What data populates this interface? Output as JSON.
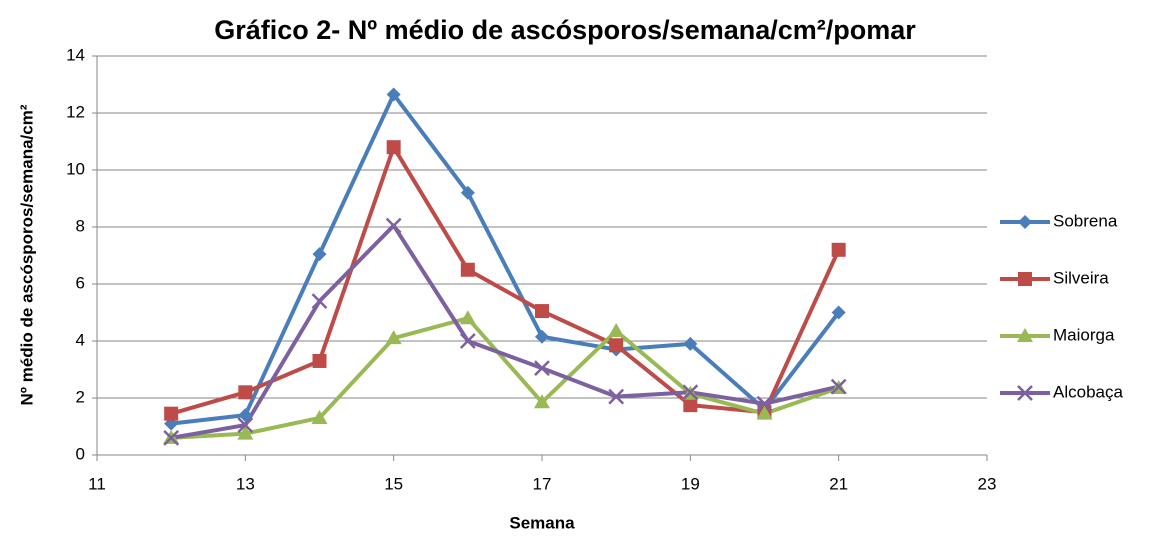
{
  "chart_data": {
    "type": "line",
    "title": "Gráfico 2- Nº médio de ascósporos/semana/cm²/pomar",
    "x_label": "Semana",
    "y_label": "Nº médio de ascósporos/semana/cm²",
    "x": [
      12,
      13,
      14,
      15,
      16,
      17,
      18,
      19,
      20,
      21
    ],
    "series": [
      {
        "name": "Sobrena",
        "color": "#4a7ebb",
        "marker": "diamond",
        "values": [
          1.1,
          1.4,
          7.05,
          12.65,
          9.2,
          4.15,
          3.7,
          3.9,
          1.6,
          5.0
        ]
      },
      {
        "name": "Silveira",
        "color": "#be4b48",
        "marker": "square",
        "values": [
          1.45,
          2.2,
          3.3,
          10.8,
          6.5,
          5.05,
          3.85,
          1.75,
          1.5,
          7.2
        ]
      },
      {
        "name": "Maiorga",
        "color": "#98b954",
        "marker": "triangle",
        "values": [
          0.6,
          0.75,
          1.3,
          4.1,
          4.8,
          1.85,
          4.35,
          2.15,
          1.45,
          2.35
        ]
      },
      {
        "name": "Alcobaça",
        "color": "#7d60a0",
        "marker": "x",
        "values": [
          0.6,
          1.05,
          5.4,
          8.05,
          4.0,
          3.05,
          2.05,
          2.2,
          1.8,
          2.4
        ]
      }
    ],
    "xlim": [
      11,
      23
    ],
    "xticks": [
      11,
      13,
      15,
      17,
      19,
      21,
      23
    ],
    "ylim": [
      0,
      14
    ],
    "yticks": [
      0,
      2,
      4,
      6,
      8,
      10,
      12,
      14
    ],
    "grid": true,
    "legend": "right"
  }
}
